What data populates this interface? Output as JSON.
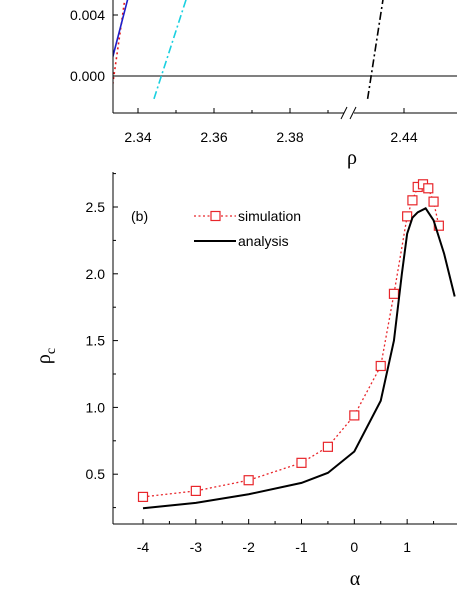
{
  "chart_data": [
    {
      "type": "line",
      "panel_label": "",
      "xlabel": "ρ",
      "ylabel": "",
      "x_ticks": [
        "2.34",
        "2.36",
        "2.38",
        "2.44"
      ],
      "y_ticks": [
        "0.004",
        "0.000"
      ],
      "ylim": [
        -0.0015,
        0.0062
      ],
      "axis_break": true,
      "series": [
        {
          "color": "#e41a1c",
          "style": "dotted",
          "x": [
            2.3328,
            2.3372
          ],
          "y": [
            -0.0015,
            0.0062
          ]
        },
        {
          "color": "#1f1fc8",
          "style": "solid",
          "x": [
            2.3305,
            2.3385
          ],
          "y": [
            -0.0015,
            0.0062
          ]
        },
        {
          "color": "#1ad0e0",
          "style": "dashdot",
          "x": [
            2.3442,
            2.3542
          ],
          "y": [
            -0.0015,
            0.0062
          ]
        },
        {
          "color": "#000000",
          "style": "dashdot",
          "x": [
            2.427,
            2.4335
          ],
          "y": [
            -0.0015,
            0.0062
          ]
        }
      ]
    },
    {
      "type": "line",
      "panel_label": "(b)",
      "xlabel": "α",
      "ylabel": "ρc",
      "ylabel_main": "ρ",
      "ylabel_sub": "c",
      "xlim": [
        -4.5,
        1.9
      ],
      "ylim": [
        0.15,
        2.8
      ],
      "x_ticks": [
        "-4",
        "-3",
        "-2",
        "-1",
        "0",
        "1"
      ],
      "y_ticks": [
        "0.5",
        "1.0",
        "1.5",
        "2.0",
        "2.5"
      ],
      "legend": {
        "placement": "top-center"
      },
      "series": [
        {
          "name": "simulation",
          "color": "#e8262b",
          "marker": "square",
          "style": "dotted",
          "x": [
            -4,
            -3,
            -2,
            -1,
            -0.5,
            0,
            0.5,
            0.75,
            1.0,
            1.1,
            1.2,
            1.3,
            1.4,
            1.5,
            1.6
          ],
          "y": [
            0.33,
            0.375,
            0.455,
            0.585,
            0.705,
            0.94,
            1.31,
            1.85,
            2.43,
            2.55,
            2.65,
            2.67,
            2.64,
            2.54,
            2.36
          ]
        },
        {
          "name": "analysis",
          "color": "#000000",
          "style": "solid",
          "x": [
            -4,
            -3,
            -2,
            -1,
            -0.5,
            0,
            0.5,
            0.75,
            0.9,
            1.0,
            1.1,
            1.2,
            1.35,
            1.5,
            1.7,
            1.9
          ],
          "y": [
            0.245,
            0.285,
            0.35,
            0.435,
            0.51,
            0.67,
            1.05,
            1.5,
            2.0,
            2.3,
            2.42,
            2.46,
            2.49,
            2.4,
            2.15,
            1.83
          ]
        }
      ]
    }
  ]
}
